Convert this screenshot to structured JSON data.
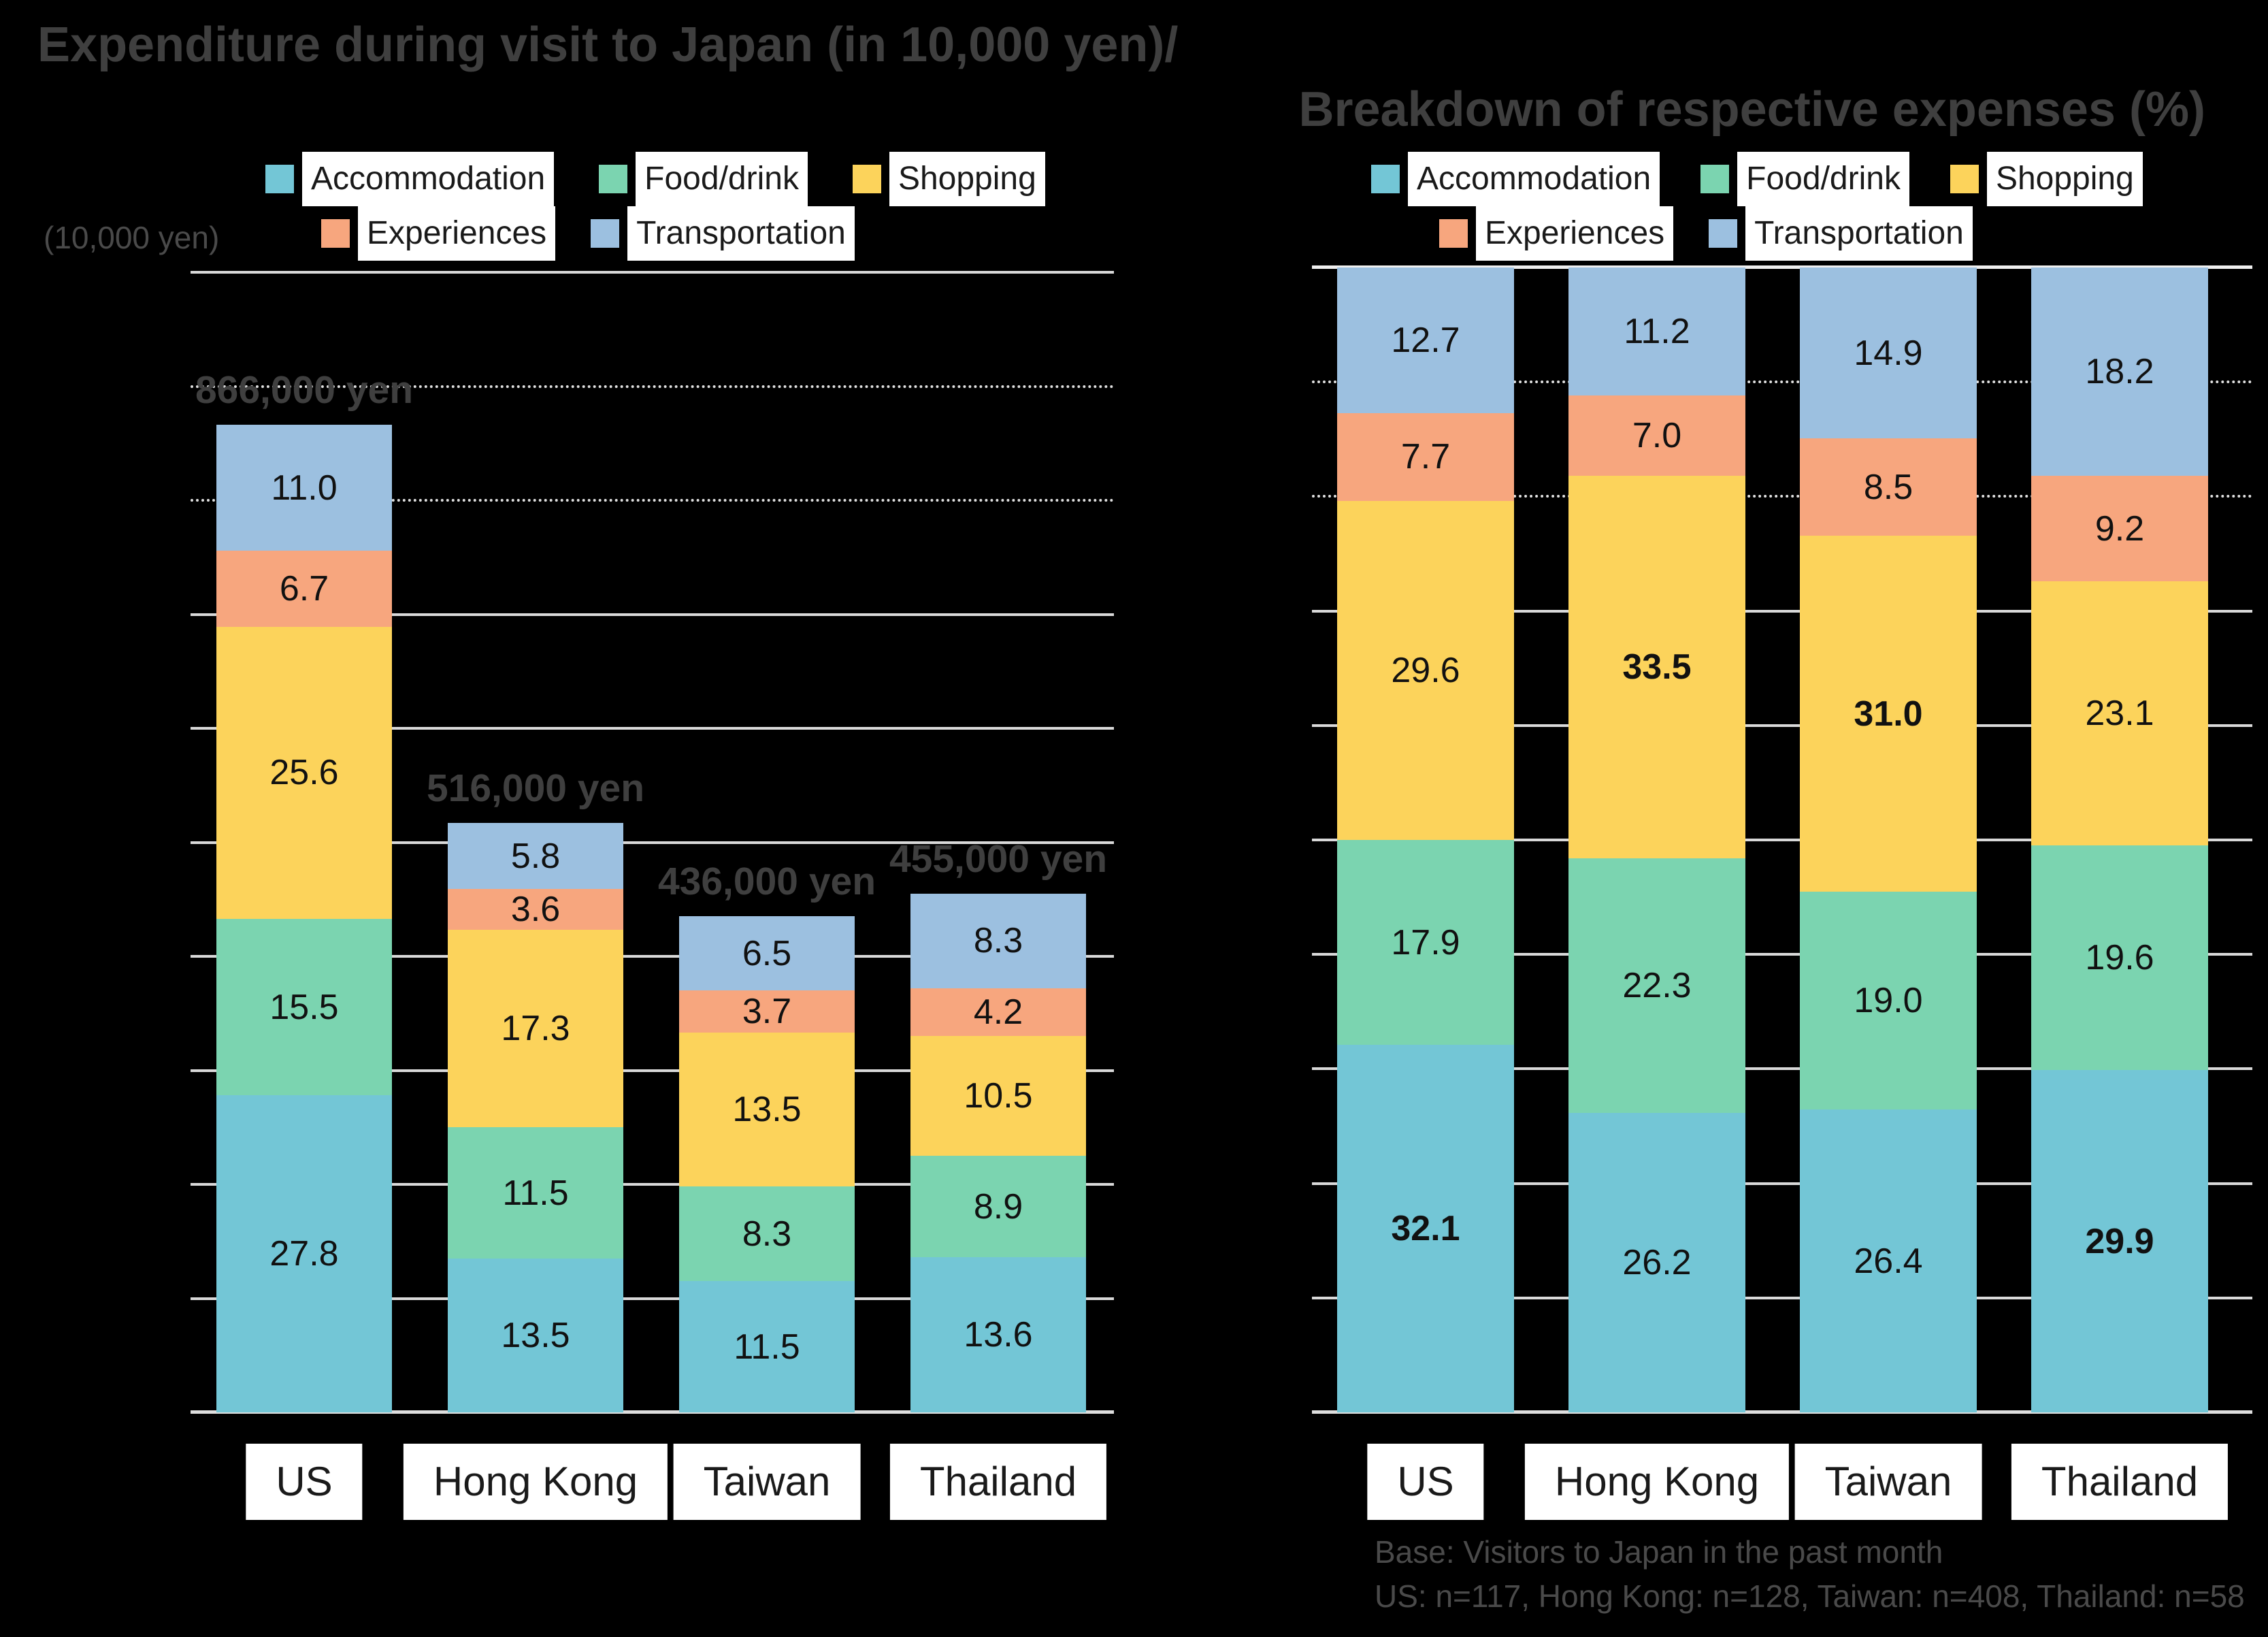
{
  "title": {
    "line1": "Expenditure during visit to Japan (in 10,000 yen)/",
    "line2": "Breakdown of respective expenses (%)"
  },
  "palette": {
    "background": "#000000",
    "title_text": "#3F3F3F",
    "label_text": "#1A1A1A",
    "gridline": "#D9D9D9",
    "label_box_background": "#FFFFFF"
  },
  "chart_data": [
    {
      "type": "bar",
      "stacked": true,
      "title": "Expenditure during visit to Japan (in 10,000 yen)",
      "unit_label": "(10,000 yen)",
      "categories": [
        "US",
        "Hong Kong",
        "Taiwan",
        "Thailand"
      ],
      "totals": [
        86.6,
        51.6,
        43.6,
        45.5
      ],
      "totals_label": [
        "866,000 yen",
        "516,000 yen",
        "436,000 yen",
        "455,000 yen"
      ],
      "series": [
        {
          "name": "Accommodation",
          "color": "#73C6D6",
          "values": [
            27.8,
            13.5,
            11.5,
            13.6
          ]
        },
        {
          "name": "Food/drink",
          "color": "#7BD4B0",
          "values": [
            15.5,
            11.5,
            8.3,
            8.9
          ]
        },
        {
          "name": "Shopping",
          "color": "#FCD35B",
          "values": [
            25.6,
            17.3,
            13.5,
            10.5
          ]
        },
        {
          "name": "Experiences",
          "color": "#F7A67E",
          "values": [
            6.7,
            3.6,
            3.7,
            4.2
          ]
        },
        {
          "name": "Transportation",
          "color": "#9CC0E0",
          "values": [
            11.0,
            5.8,
            6.5,
            8.3
          ]
        }
      ],
      "ylim": [
        0,
        100
      ],
      "gridline_step": 10,
      "dotted_gridlines": [
        80,
        90
      ],
      "legend_position": "top",
      "grid": true
    },
    {
      "type": "bar",
      "stacked": true,
      "percent": true,
      "title": "Breakdown of respective expenses (%)",
      "categories": [
        "US",
        "Hong Kong",
        "Taiwan",
        "Thailand"
      ],
      "series": [
        {
          "name": "Accommodation",
          "color": "#73C6D6",
          "values": [
            32.1,
            26.2,
            26.4,
            29.9
          ],
          "bold": [
            true,
            false,
            false,
            true
          ]
        },
        {
          "name": "Food/drink",
          "color": "#7BD4B0",
          "values": [
            17.9,
            22.3,
            19.0,
            19.6
          ],
          "bold": [
            false,
            false,
            false,
            false
          ]
        },
        {
          "name": "Shopping",
          "color": "#FCD35B",
          "values": [
            29.6,
            33.5,
            31.0,
            23.1
          ],
          "bold": [
            false,
            true,
            true,
            false
          ]
        },
        {
          "name": "Experiences",
          "color": "#F7A67E",
          "values": [
            7.7,
            7.0,
            8.5,
            9.2
          ],
          "bold": [
            false,
            false,
            false,
            false
          ]
        },
        {
          "name": "Transportation",
          "color": "#9CC0E0",
          "values": [
            12.7,
            11.2,
            14.9,
            18.2
          ],
          "bold": [
            false,
            false,
            false,
            false
          ]
        }
      ],
      "ylim": [
        0,
        100
      ],
      "gridline_step": 10,
      "dotted_gridlines": [
        80,
        90
      ],
      "legend_position": "top",
      "grid": true,
      "footer": {
        "line1": "Base: Visitors to Japan in the past month",
        "line2": "US: n=117, Hong Kong: n=128, Taiwan: n=408, Thailand: n=58"
      }
    }
  ]
}
